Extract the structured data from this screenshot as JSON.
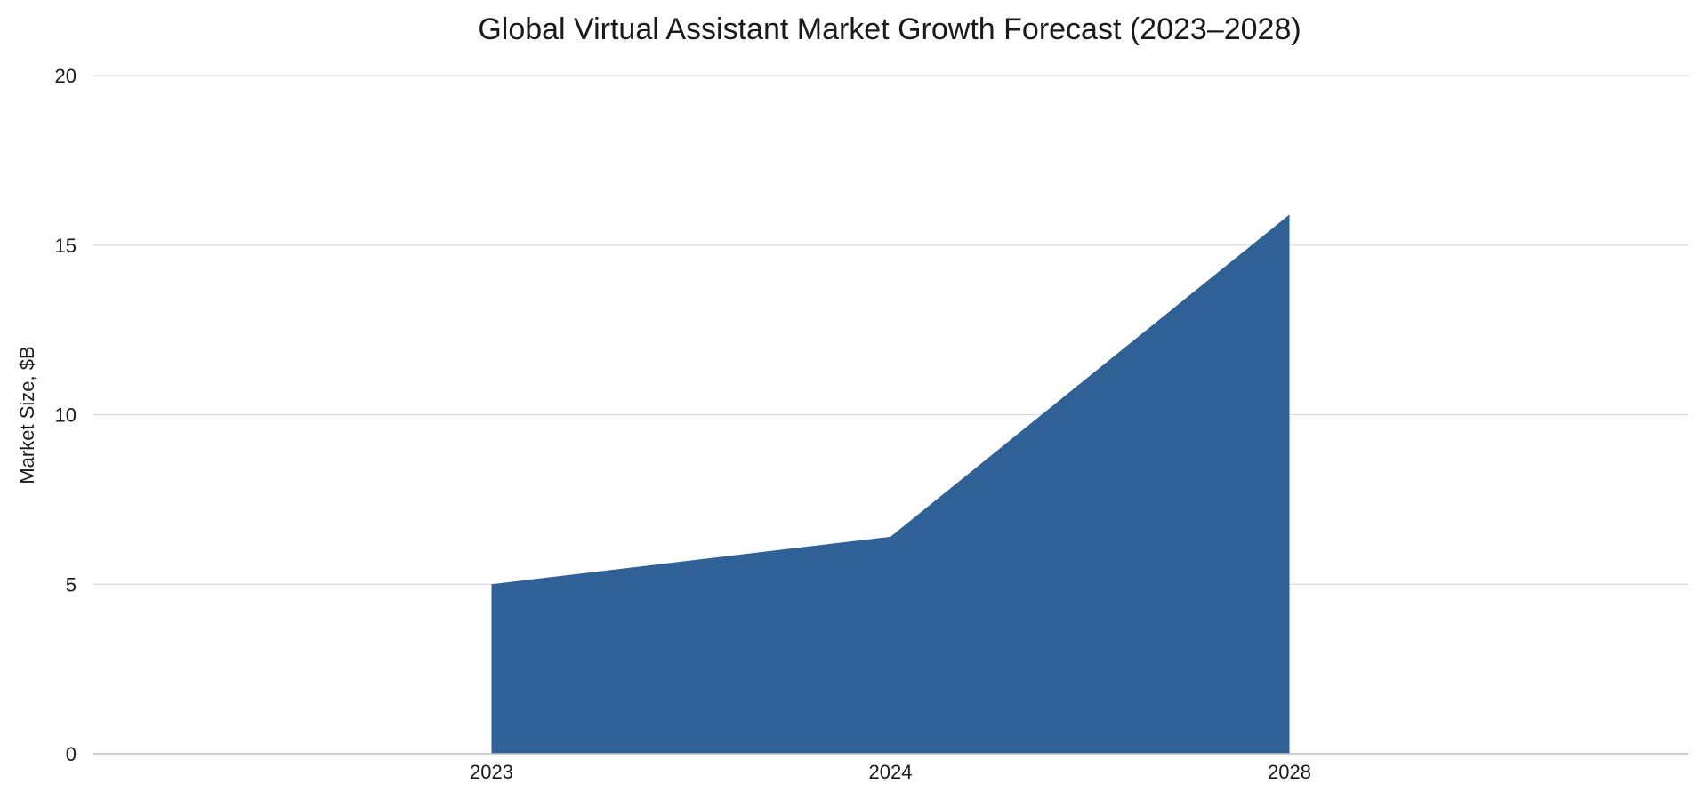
{
  "chart_data": {
    "type": "area",
    "title": "Global Virtual Assistant Market Growth Forecast (2023–2028)",
    "xlabel": "",
    "ylabel": "Market Size, $B",
    "categories": [
      "2023",
      "2024",
      "2028"
    ],
    "series": [
      {
        "values": [
          5.0,
          6.4,
          15.9
        ]
      }
    ],
    "ylim": [
      0,
      20
    ],
    "yticks": [
      0,
      5,
      10,
      15,
      20
    ],
    "grid": true,
    "legend": "none",
    "colors": {
      "area": "#2f6096"
    }
  }
}
